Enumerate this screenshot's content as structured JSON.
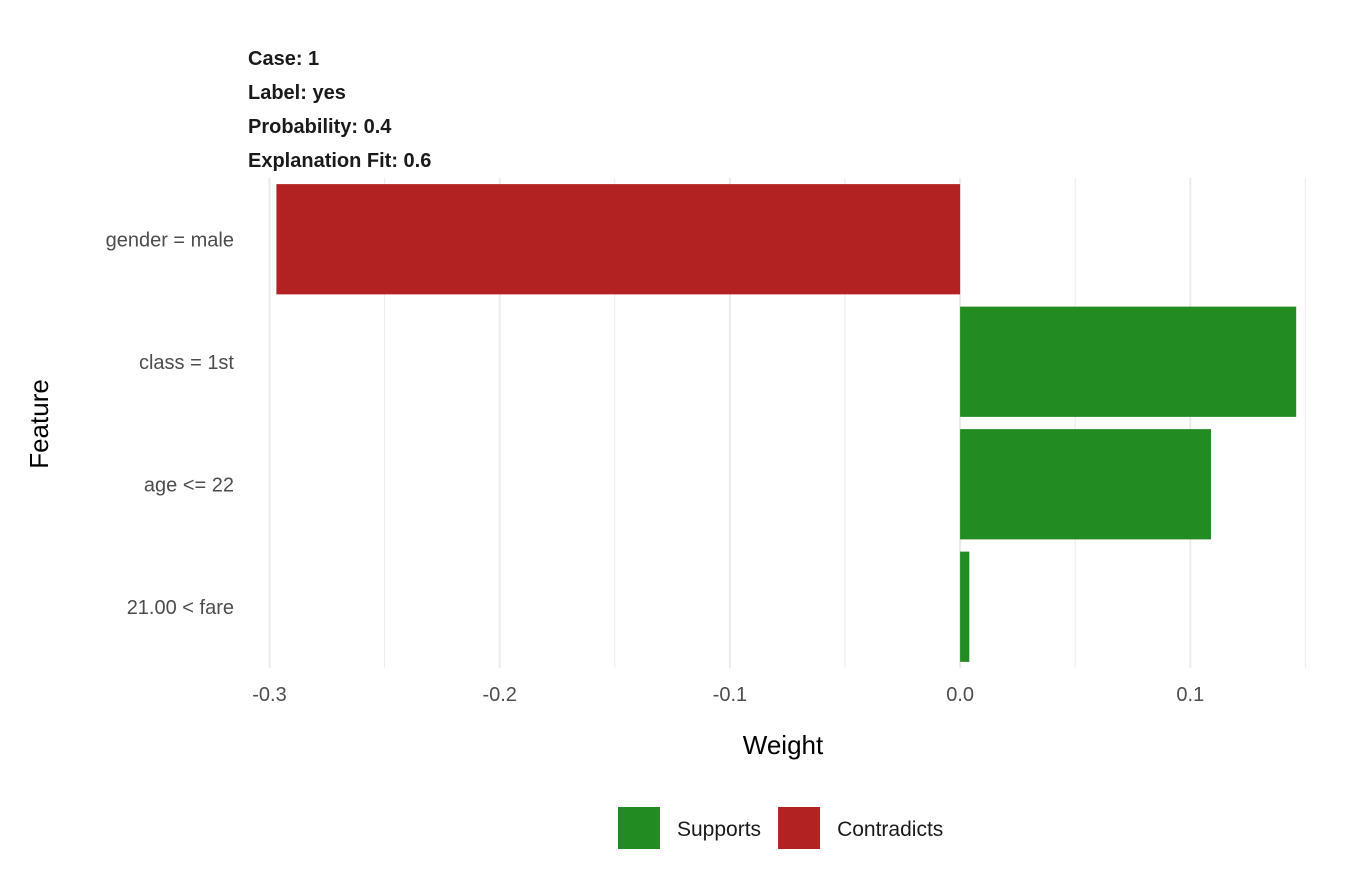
{
  "chart_data": {
    "type": "bar",
    "orientation": "horizontal",
    "title_lines": [
      "Case: 1",
      "Label: yes",
      "Probability: 0.4",
      "Explanation Fit: 0.6"
    ],
    "xlabel": "Weight",
    "ylabel": "Feature",
    "xlim": [
      -0.305,
      0.152
    ],
    "x_ticks": [
      -0.3,
      -0.2,
      -0.1,
      0.0,
      0.1
    ],
    "x_tick_labels": [
      "-0.3",
      "-0.2",
      "-0.1",
      "0.0",
      "0.1"
    ],
    "x_minor_ticks": [
      -0.25,
      -0.15,
      -0.05,
      0.05,
      0.15
    ],
    "grid": true,
    "legend_position": "bottom",
    "colors": {
      "supports": "#228B22",
      "contradicts": "#B22222"
    },
    "legend": [
      {
        "label": "Supports",
        "key": "supports"
      },
      {
        "label": "Contradicts",
        "key": "contradicts"
      }
    ],
    "categories": [
      "gender = male",
      "class = 1st",
      "age <= 22",
      "21.00 < fare"
    ],
    "values": [
      -0.297,
      0.146,
      0.109,
      0.004
    ],
    "types": [
      "contradicts",
      "supports",
      "supports",
      "supports"
    ]
  }
}
